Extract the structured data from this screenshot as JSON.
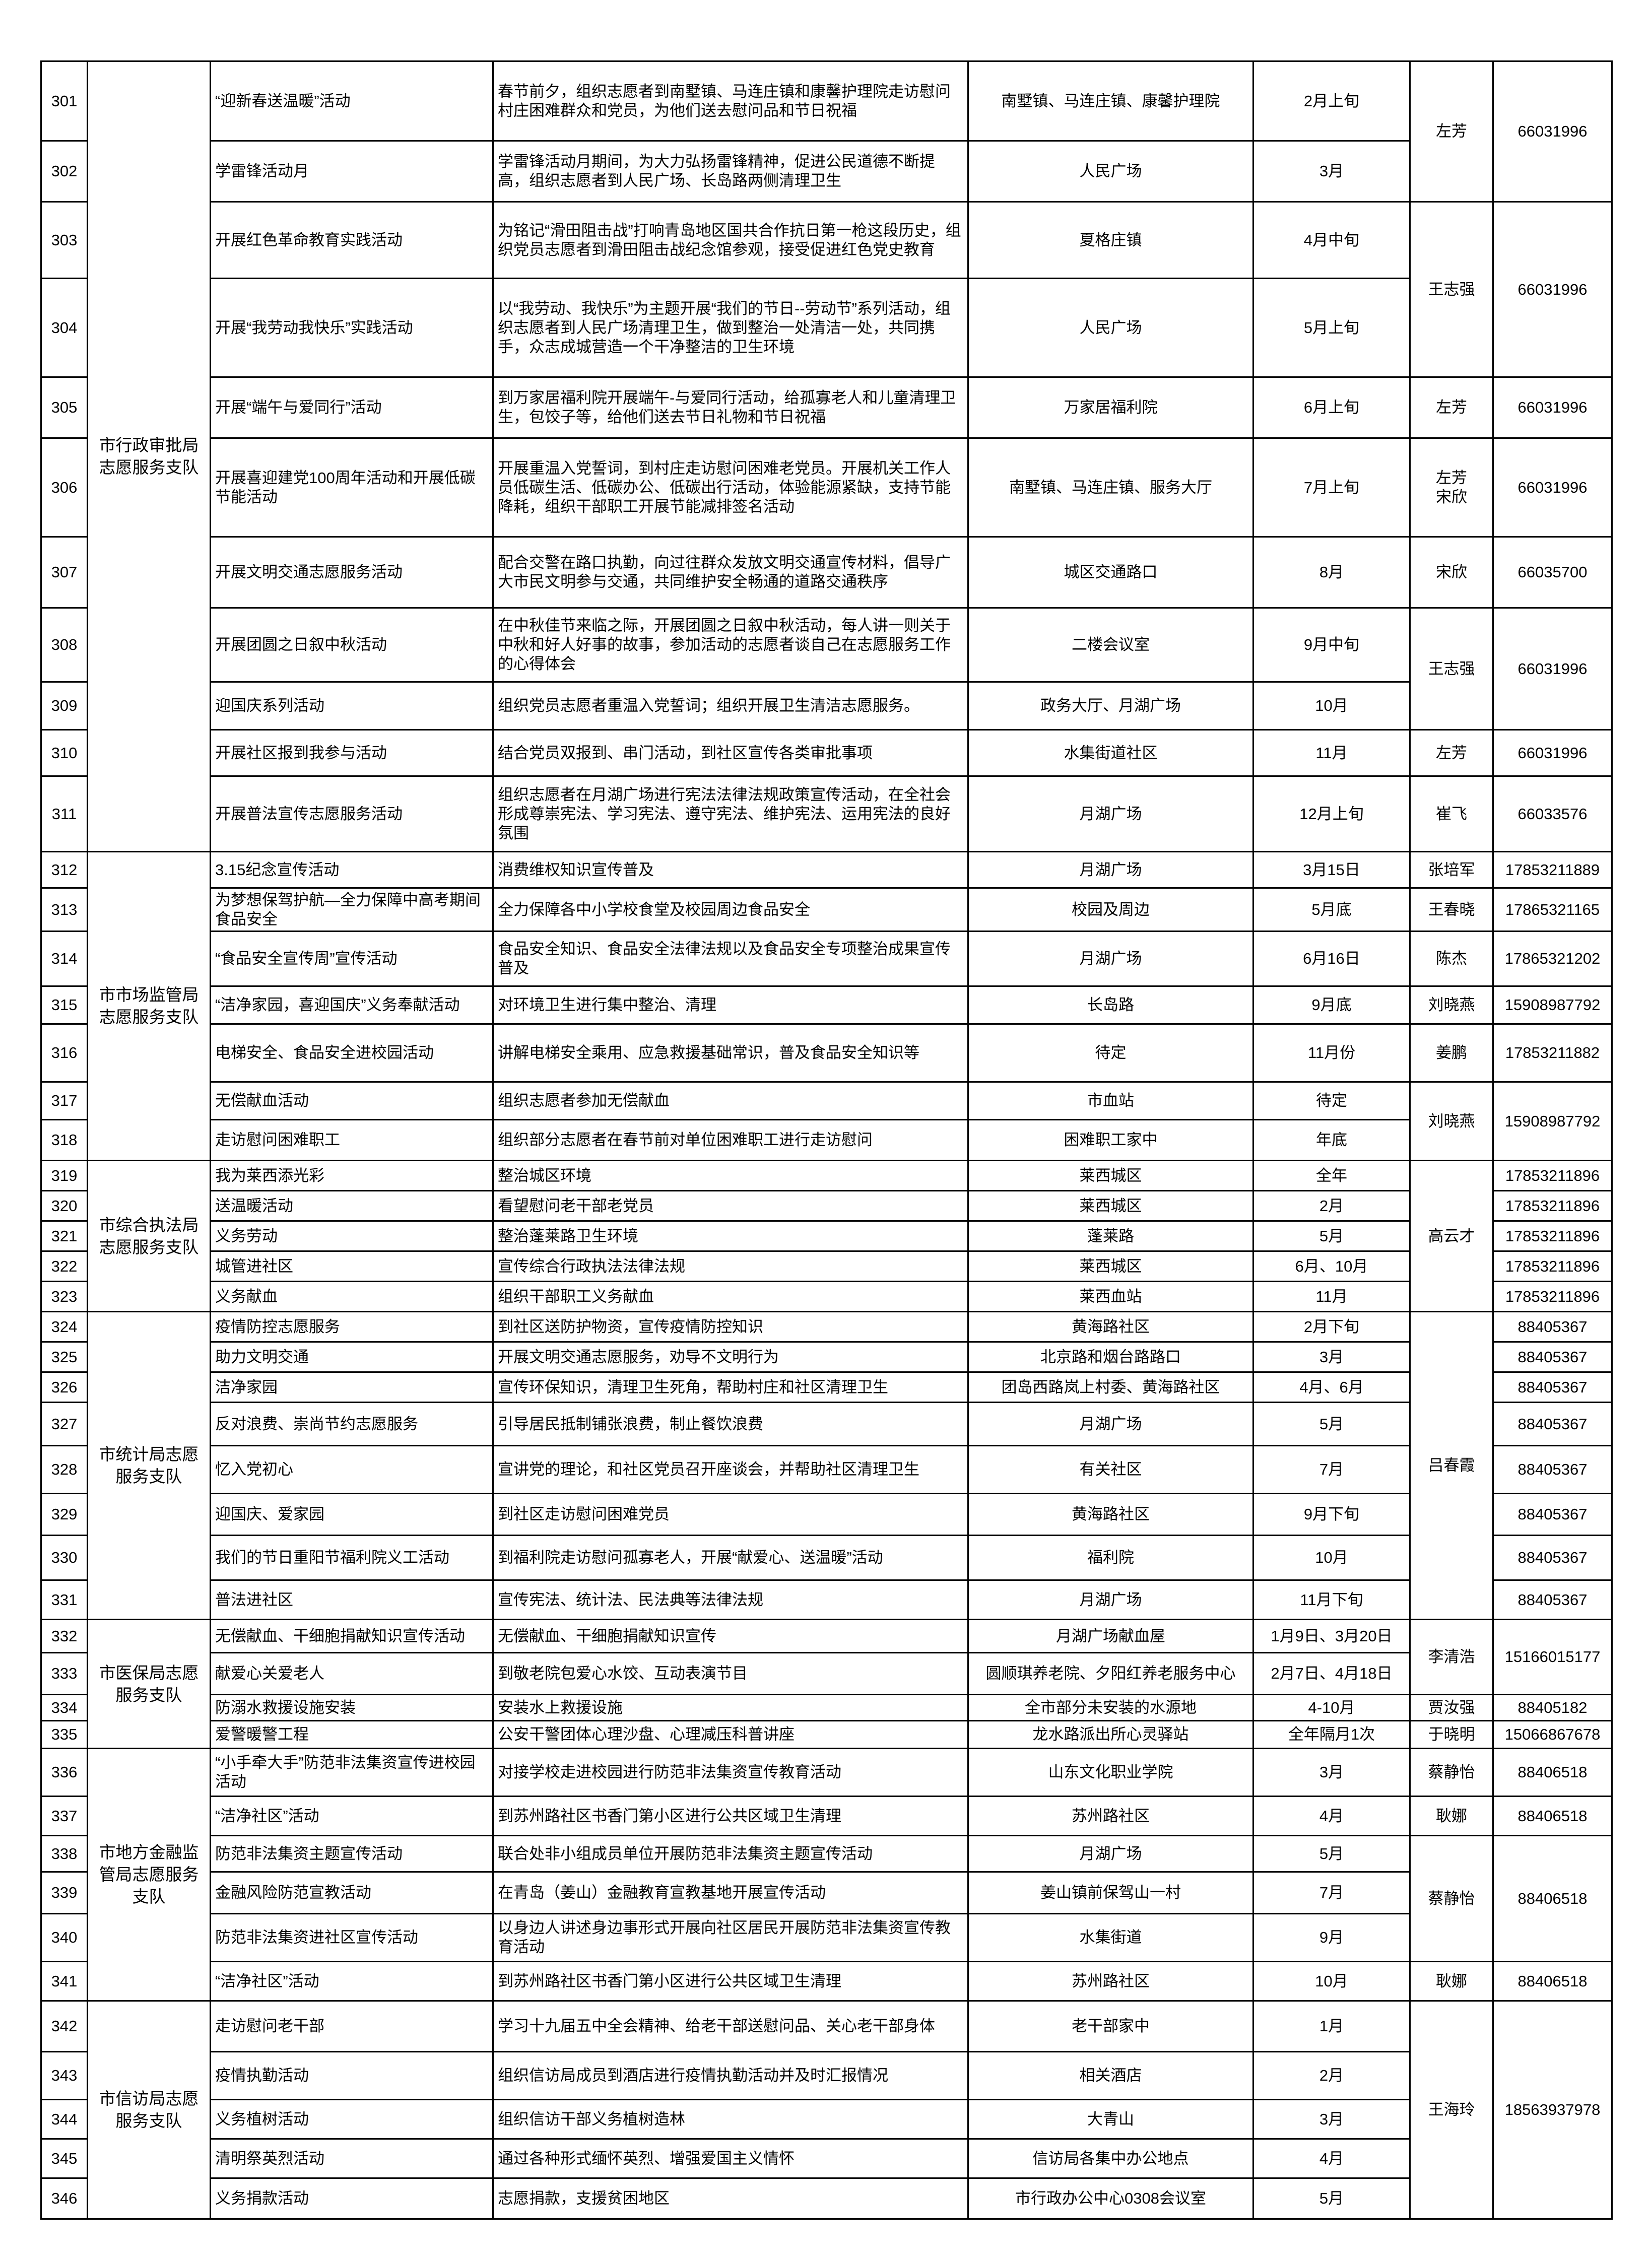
{
  "departments": [
    {
      "name": "市行政审批局志愿服务支队",
      "groups": [
        {
          "contact": [
            "左芳"
          ],
          "phone": "66031996",
          "rows": [
            {
              "num": "301",
              "activity": "“迎新春送温暖”活动",
              "content": "春节前夕，组织志愿者到南墅镇、马连庄镇和康馨护理院走访慰问村庄困难群众和党员，为他们送去慰问品和节日祝福",
              "location": "南墅镇、马连庄镇、康馨护理院",
              "time": "2月上旬"
            },
            {
              "num": "302",
              "activity": "学雷锋活动月",
              "content": "学雷锋活动月期间，为大力弘扬雷锋精神，促进公民道德不断提高，组织志愿者到人民广场、长岛路两侧清理卫生",
              "location": "人民广场",
              "time": "3月"
            }
          ]
        },
        {
          "contact": [
            "王志强"
          ],
          "phone": "66031996",
          "rows": [
            {
              "num": "303",
              "activity": "开展红色革命教育实践活动",
              "content": "为铭记“滑田阻击战”打响青岛地区国共合作抗日第一枪这段历史，组织党员志愿者到滑田阻击战纪念馆参观，接受促进红色党史教育",
              "location": "夏格庄镇",
              "time": "4月中旬"
            },
            {
              "num": "304",
              "activity": "开展“我劳动我快乐”实践活动",
              "content": "以“我劳动、我快乐”为主题开展“我们的节日--劳动节”系列活动，组织志愿者到人民广场清理卫生，做到整治一处清洁一处，共同携手，众志成城营造一个干净整洁的卫生环境",
              "location": "人民广场",
              "time": "5月上旬"
            }
          ]
        },
        {
          "contact": [
            "左芳"
          ],
          "phone": "66031996",
          "rows": [
            {
              "num": "305",
              "activity": "开展“端午与爱同行”活动",
              "content": "到万家居福利院开展端午-与爱同行活动，给孤寡老人和儿童清理卫生，包饺子等，给他们送去节日礼物和节日祝福",
              "location": "万家居福利院",
              "time": "6月上旬"
            }
          ]
        },
        {
          "contact": [
            "左芳",
            "宋欣"
          ],
          "phone": "66031996",
          "rows": [
            {
              "num": "306",
              "activity": "开展喜迎建党100周年活动和开展低碳节能活动",
              "content": "开展重温入党誓词，到村庄走访慰问困难老党员。开展机关工作人员低碳生活、低碳办公、低碳出行活动，体验能源紧缺，支持节能降耗，组织干部职工开展节能减排签名活动",
              "location": "南墅镇、马连庄镇、服务大厅",
              "time": "7月上旬"
            }
          ]
        },
        {
          "contact": [
            "宋欣"
          ],
          "phone": "66035700",
          "rows": [
            {
              "num": "307",
              "activity": "开展文明交通志愿服务活动",
              "content": "配合交警在路口执勤，向过往群众发放文明交通宣传材料，倡导广大市民文明参与交通，共同维护安全畅通的道路交通秩序",
              "location": "城区交通路口",
              "time": "8月"
            }
          ]
        },
        {
          "contact": [
            "王志强"
          ],
          "phone": "66031996",
          "rows": [
            {
              "num": "308",
              "activity": "开展团圆之日叙中秋活动",
              "content": "在中秋佳节来临之际，开展团圆之日叙中秋活动，每人讲一则关于中秋和好人好事的故事，参加活动的志愿者谈自己在志愿服务工作的心得体会",
              "location": "二楼会议室",
              "time": "9月中旬"
            },
            {
              "num": "309",
              "activity": "迎国庆系列活动",
              "content": "组织党员志愿者重温入党誓词；组织开展卫生清洁志愿服务。",
              "location": "政务大厅、月湖广场",
              "time": "10月"
            }
          ]
        },
        {
          "contact": [
            "左芳"
          ],
          "phone": "66031996",
          "rows": [
            {
              "num": "310",
              "activity": "开展社区报到我参与活动",
              "content": "结合党员双报到、串门活动，到社区宣传各类审批事项",
              "location": "水集街道社区",
              "time": "11月"
            }
          ]
        },
        {
          "contact": [
            "崔飞"
          ],
          "phone": "66033576",
          "rows": [
            {
              "num": "311",
              "activity": "开展普法宣传志愿服务活动",
              "content": "组织志愿者在月湖广场进行宪法法律法规政策宣传活动，在全社会形成尊崇宪法、学习宪法、遵守宪法、维护宪法、运用宪法的良好氛围",
              "location": "月湖广场",
              "time": "12月上旬"
            }
          ]
        }
      ]
    },
    {
      "name": "市市场监管局志愿服务支队",
      "groups": [
        {
          "contact": [
            "张培军"
          ],
          "phone": "17853211889",
          "rows": [
            {
              "num": "312",
              "activity": "3.15纪念宣传活动",
              "content": "消费维权知识宣传普及",
              "location": "月湖广场",
              "time": "3月15日"
            }
          ]
        },
        {
          "contact": [
            "王春晓"
          ],
          "phone": "17865321165",
          "rows": [
            {
              "num": "313",
              "activity": "为梦想保驾护航—全力保障中高考期间食品安全",
              "content": "全力保障各中小学校食堂及校园周边食品安全",
              "location": "校园及周边",
              "time": "5月底"
            }
          ]
        },
        {
          "contact": [
            "陈杰"
          ],
          "phone": "17865321202",
          "rows": [
            {
              "num": "314",
              "activity": "“食品安全宣传周”宣传活动",
              "content": "食品安全知识、食品安全法律法规以及食品安全专项整治成果宣传普及",
              "location": "月湖广场",
              "time": "6月16日"
            }
          ]
        },
        {
          "contact": [
            "刘晓燕"
          ],
          "phone": "15908987792",
          "rows": [
            {
              "num": "315",
              "activity": "“洁净家园，喜迎国庆”义务奉献活动",
              "content": "对环境卫生进行集中整治、清理",
              "location": "长岛路",
              "time": "9月底"
            }
          ]
        },
        {
          "contact": [
            "姜鹏"
          ],
          "phone": "17853211882",
          "rows": [
            {
              "num": "316",
              "activity": "电梯安全、食品安全进校园活动",
              "content": "讲解电梯安全乘用、应急救援基础常识，普及食品安全知识等",
              "location": "待定",
              "time": "11月份"
            }
          ]
        },
        {
          "contact": [
            "刘晓燕"
          ],
          "phone": "15908987792",
          "rows": [
            {
              "num": "317",
              "activity": "无偿献血活动",
              "content": "组织志愿者参加无偿献血",
              "location": "市血站",
              "time": "待定"
            },
            {
              "num": "318",
              "activity": "走访慰问困难职工",
              "content": "组织部分志愿者在春节前对单位困难职工进行走访慰问",
              "location": "困难职工家中",
              "time": "年底"
            }
          ]
        }
      ]
    },
    {
      "name": "市综合执法局志愿服务支队",
      "groups": [
        {
          "contact": [
            "高云才"
          ],
          "rows": [
            {
              "num": "319",
              "activity": "我为莱西添光彩",
              "content": "整治城区环境",
              "location": "莱西城区",
              "time": "全年",
              "phone": "17853211896"
            },
            {
              "num": "320",
              "activity": "送温暖活动",
              "content": "看望慰问老干部老党员",
              "location": "莱西城区",
              "time": "2月",
              "phone": "17853211896"
            },
            {
              "num": "321",
              "activity": "义务劳动",
              "content": "整治蓬莱路卫生环境",
              "location": "蓬莱路",
              "time": "5月",
              "phone": "17853211896"
            },
            {
              "num": "322",
              "activity": "城管进社区",
              "content": "宣传综合行政执法法律法规",
              "location": "莱西城区",
              "time": "6月、10月",
              "phone": "17853211896"
            },
            {
              "num": "323",
              "activity": "义务献血",
              "content": "组织干部职工义务献血",
              "location": "莱西血站",
              "time": "11月",
              "phone": "17853211896"
            }
          ]
        }
      ]
    },
    {
      "name": "市统计局志愿服务支队",
      "groups": [
        {
          "contact": [
            "吕春霞"
          ],
          "rows": [
            {
              "num": "324",
              "activity": "疫情防控志愿服务",
              "content": "到社区送防护物资，宣传疫情防控知识",
              "location": "黄海路社区",
              "time": "2月下旬",
              "phone": "88405367"
            },
            {
              "num": "325",
              "activity": "助力文明交通",
              "content": "开展文明交通志愿服务，劝导不文明行为",
              "location": "北京路和烟台路路口",
              "time": "3月",
              "phone": "88405367"
            },
            {
              "num": "326",
              "activity": "洁净家园",
              "content": "宣传环保知识，清理卫生死角，帮助村庄和社区清理卫生",
              "location": "团岛西路岚上村委、黄海路社区",
              "time": "4月、6月",
              "phone": "88405367"
            },
            {
              "num": "327",
              "activity": "反对浪费、崇尚节约志愿服务",
              "content": "引导居民抵制铺张浪费，制止餐饮浪费",
              "location": "月湖广场",
              "time": "5月",
              "phone": "88405367"
            },
            {
              "num": "328",
              "activity": "忆入党初心",
              "content": "宣讲党的理论，和社区党员召开座谈会，并帮助社区清理卫生",
              "location": "有关社区",
              "time": "7月",
              "phone": "88405367"
            },
            {
              "num": "329",
              "activity": "迎国庆、爱家园",
              "content": "到社区走访慰问困难党员",
              "location": "黄海路社区",
              "time": "9月下旬",
              "phone": "88405367"
            },
            {
              "num": "330",
              "activity": "我们的节日重阳节福利院义工活动",
              "content": "到福利院走访慰问孤寡老人，开展“献爱心、送温暖”活动",
              "location": "福利院",
              "time": "10月",
              "phone": "88405367"
            },
            {
              "num": "331",
              "activity": "普法进社区",
              "content": "宣传宪法、统计法、民法典等法律法规",
              "location": "月湖广场",
              "time": "11月下旬",
              "phone": "88405367"
            }
          ]
        }
      ]
    },
    {
      "name": "市医保局志愿服务支队",
      "groups": [
        {
          "contact": [
            "李清浩"
          ],
          "phone": "15166015177",
          "rows": [
            {
              "num": "332",
              "activity": "无偿献血、干细胞捐献知识宣传活动",
              "content": "无偿献血、干细胞捐献知识宣传",
              "location": "月湖广场献血屋",
              "time": "1月9日、3月20日"
            },
            {
              "num": "333",
              "activity": "献爱心关爱老人",
              "content": "到敬老院包爱心水饺、互动表演节目",
              "location": "圆顺琪养老院、夕阳红养老服务中心",
              "time": "2月7日、4月18日"
            }
          ]
        },
        {
          "contact": [
            "贾汝强"
          ],
          "phone": "88405182",
          "rows": [
            {
              "num": "334",
              "activity": "防溺水救援设施安装",
              "content": "安装水上救援设施",
              "location": "全市部分未安装的水源地",
              "time": "4-10月"
            }
          ]
        },
        {
          "contact": [
            "于晓明"
          ],
          "phone": "15066867678",
          "rows": [
            {
              "num": "335",
              "activity": "爱警暖警工程",
              "content": "公安干警团体心理沙盘、心理减压科普讲座",
              "location": "龙水路派出所心灵驿站",
              "time": "全年隔月1次"
            }
          ]
        }
      ]
    },
    {
      "name": "市地方金融监管局志愿服务支队",
      "groups": [
        {
          "contact": [
            "蔡静怡"
          ],
          "phone": "88406518",
          "rows": [
            {
              "num": "336",
              "activity": "“小手牵大手”防范非法集资宣传进校园活动",
              "content": "对接学校走进校园进行防范非法集资宣传教育活动",
              "location": "山东文化职业学院",
              "time": "3月"
            }
          ]
        },
        {
          "contact": [
            "耿娜"
          ],
          "phone": "88406518",
          "rows": [
            {
              "num": "337",
              "activity": "“洁净社区”活动",
              "content": "到苏州路社区书香门第小区进行公共区域卫生清理",
              "location": "苏州路社区",
              "time": "4月"
            }
          ]
        },
        {
          "contact": [
            "蔡静怡"
          ],
          "phone": "88406518",
          "rows": [
            {
              "num": "338",
              "activity": "防范非法集资主题宣传活动",
              "content": "联合处非小组成员单位开展防范非法集资主题宣传活动",
              "location": "月湖广场",
              "time": "5月"
            },
            {
              "num": "339",
              "activity": "金融风险防范宣教活动",
              "content": "在青岛（姜山）金融教育宣教基地开展宣传活动",
              "location": "姜山镇前保驾山一村",
              "time": "7月"
            },
            {
              "num": "340",
              "activity": "防范非法集资进社区宣传活动",
              "content": "以身边人讲述身边事形式开展向社区居民开展防范非法集资宣传教育活动",
              "location": "水集街道",
              "time": "9月"
            }
          ]
        },
        {
          "contact": [
            "耿娜"
          ],
          "phone": "88406518",
          "rows": [
            {
              "num": "341",
              "activity": "“洁净社区”活动",
              "content": "到苏州路社区书香门第小区进行公共区域卫生清理",
              "location": "苏州路社区",
              "time": "10月"
            }
          ]
        }
      ]
    },
    {
      "name": "市信访局志愿服务支队",
      "groups": [
        {
          "contact": [
            "王海玲"
          ],
          "phone": "18563937978",
          "rows": [
            {
              "num": "342",
              "activity": "走访慰问老干部",
              "content": "学习十九届五中全会精神、给老干部送慰问品、关心老干部身体",
              "location": "老干部家中",
              "time": "1月"
            },
            {
              "num": "343",
              "activity": "疫情执勤活动",
              "content": "组织信访局成员到酒店进行疫情执勤活动并及时汇报情况",
              "location": "相关酒店",
              "time": "2月"
            },
            {
              "num": "344",
              "activity": "义务植树活动",
              "content": "组织信访干部义务植树造林",
              "location": "大青山",
              "time": "3月"
            },
            {
              "num": "345",
              "activity": "清明祭英烈活动",
              "content": "通过各种形式缅怀英烈、增强爱国主义情怀",
              "location": "信访局各集中办公地点",
              "time": "4月"
            },
            {
              "num": "346",
              "activity": "义务捐款活动",
              "content": "志愿捐款，支援贫困地区",
              "location": "市行政办公中心0308会议室",
              "time": "5月"
            }
          ]
        }
      ]
    }
  ]
}
